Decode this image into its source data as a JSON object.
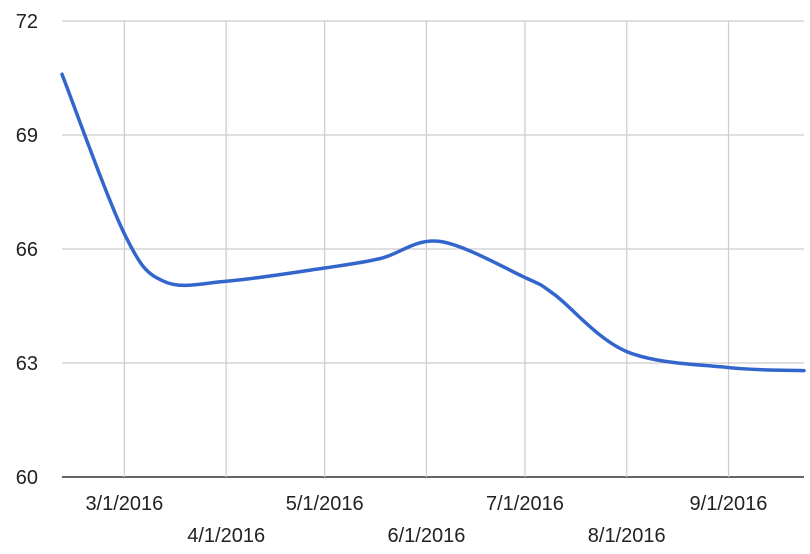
{
  "chart_data": {
    "type": "line",
    "title": "",
    "xlabel": "",
    "ylabel": "",
    "xlim": [
      "2016-02-11",
      "2016-09-24"
    ],
    "ylim": [
      60,
      72
    ],
    "y_ticks": [
      60,
      63,
      66,
      69,
      72
    ],
    "x_ticks": [
      {
        "date": "2016-03-01",
        "label": "3/1/2016",
        "row": 1
      },
      {
        "date": "2016-04-01",
        "label": "4/1/2016",
        "row": 2
      },
      {
        "date": "2016-05-01",
        "label": "5/1/2016",
        "row": 1
      },
      {
        "date": "2016-06-01",
        "label": "6/1/2016",
        "row": 2
      },
      {
        "date": "2016-07-01",
        "label": "7/1/2016",
        "row": 1
      },
      {
        "date": "2016-08-01",
        "label": "8/1/2016",
        "row": 2
      },
      {
        "date": "2016-09-01",
        "label": "9/1/2016",
        "row": 1
      }
    ],
    "grid": true,
    "legend": "none",
    "series": [
      {
        "color": "#3366cc",
        "points": [
          {
            "x": "2016-02-11",
            "y": 70.6
          },
          {
            "x": "2016-03-01",
            "y": 66.4
          },
          {
            "x": "2016-03-13",
            "y": 65.15
          },
          {
            "x": "2016-04-01",
            "y": 65.15
          },
          {
            "x": "2016-05-01",
            "y": 65.5
          },
          {
            "x": "2016-05-18",
            "y": 65.75
          },
          {
            "x": "2016-06-05",
            "y": 66.2
          },
          {
            "x": "2016-07-01",
            "y": 65.25
          },
          {
            "x": "2016-07-10",
            "y": 64.8
          },
          {
            "x": "2016-08-01",
            "y": 63.3
          },
          {
            "x": "2016-09-01",
            "y": 62.88
          },
          {
            "x": "2016-09-24",
            "y": 62.8
          }
        ]
      }
    ]
  }
}
